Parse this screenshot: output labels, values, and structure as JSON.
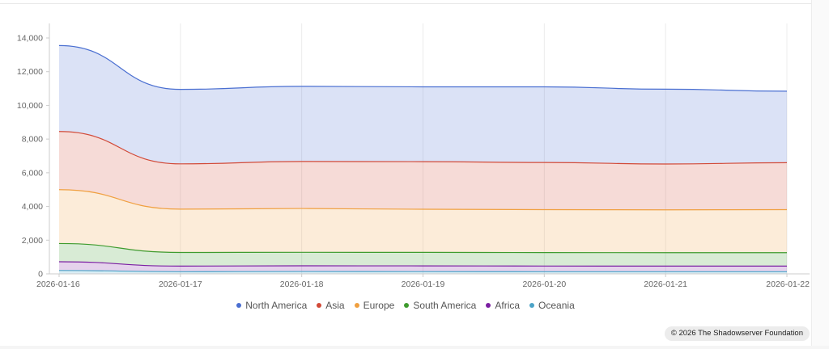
{
  "chart_data": {
    "type": "area",
    "stacked": true,
    "x": [
      "2026-01-16",
      "2026-01-17",
      "2026-01-18",
      "2026-01-19",
      "2026-01-20",
      "2026-01-21",
      "2026-01-22"
    ],
    "ylim": [
      0,
      14000
    ],
    "yticks": [
      0,
      2000,
      4000,
      6000,
      8000,
      10000,
      12000,
      14000
    ],
    "ytick_labels": [
      "0",
      "2,000",
      "4,000",
      "6,000",
      "8,000",
      "10,000",
      "12,000",
      "14,000"
    ],
    "grid": "vertical",
    "legend_position": "bottom",
    "series": [
      {
        "name": "Oceania",
        "color": "#4ba3c7",
        "values": [
          200,
          130,
          140,
          135,
          130,
          130,
          130
        ]
      },
      {
        "name": "Africa",
        "color": "#7b1fa2",
        "values": [
          520,
          330,
          340,
          340,
          335,
          330,
          330
        ]
      },
      {
        "name": "South America",
        "color": "#3e9b2e",
        "values": [
          1080,
          810,
          800,
          800,
          800,
          800,
          800
        ]
      },
      {
        "name": "Europe",
        "color": "#f0a040",
        "values": [
          3200,
          2570,
          2600,
          2560,
          2545,
          2540,
          2550
        ]
      },
      {
        "name": "Asia",
        "color": "#d24a38",
        "values": [
          3450,
          2690,
          2790,
          2825,
          2800,
          2720,
          2790
        ]
      },
      {
        "name": "North America",
        "color": "#4a6fd1",
        "values": [
          5100,
          4420,
          4460,
          4440,
          4490,
          4440,
          4240
        ]
      }
    ]
  },
  "legend": {
    "items": [
      {
        "label": "North America",
        "color": "#4a6fd1"
      },
      {
        "label": "Asia",
        "color": "#d24a38"
      },
      {
        "label": "Europe",
        "color": "#f0a040"
      },
      {
        "label": "South America",
        "color": "#3e9b2e"
      },
      {
        "label": "Africa",
        "color": "#7b1fa2"
      },
      {
        "label": "Oceania",
        "color": "#4ba3c7"
      }
    ]
  },
  "footer": {
    "copyright": "© 2026 The Shadowserver Foundation"
  }
}
